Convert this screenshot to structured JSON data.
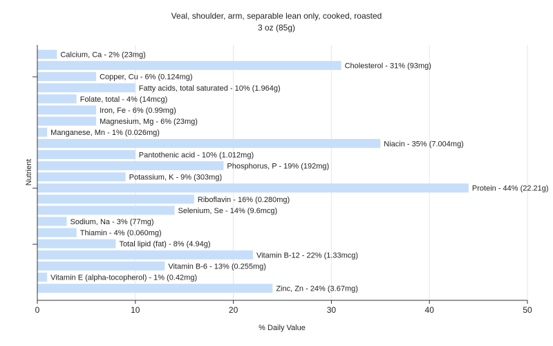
{
  "chart_data": {
    "type": "bar",
    "orientation": "horizontal",
    "title": "Veal, shoulder, arm, separable lean only, cooked, roasted",
    "subtitle": "3 oz (85g)",
    "xlabel": "% Daily Value",
    "ylabel": "Nutrient",
    "xlim": [
      0,
      50
    ],
    "xticks": [
      "0",
      "10",
      "20",
      "30",
      "40",
      "50"
    ],
    "grid": true,
    "bar_color": "#c6defa",
    "categories": [
      "Calcium, Ca",
      "Cholesterol",
      "Copper, Cu",
      "Fatty acids, total saturated",
      "Folate, total",
      "Iron, Fe",
      "Magnesium, Mg",
      "Manganese, Mn",
      "Niacin",
      "Pantothenic acid",
      "Phosphorus, P",
      "Potassium, K",
      "Protein",
      "Riboflavin",
      "Selenium, Se",
      "Sodium, Na",
      "Thiamin",
      "Total lipid (fat)",
      "Vitamin B-12",
      "Vitamin B-6",
      "Vitamin E (alpha-tocopherol)",
      "Zinc, Zn"
    ],
    "values": [
      2,
      31,
      6,
      10,
      4,
      6,
      6,
      1,
      35,
      10,
      19,
      9,
      44,
      16,
      14,
      3,
      4,
      8,
      22,
      13,
      1,
      24
    ],
    "labels": [
      "Calcium, Ca - 2% (23mg)",
      "Cholesterol - 31% (93mg)",
      "Copper, Cu - 6% (0.124mg)",
      "Fatty acids, total saturated - 10% (1.964g)",
      "Folate, total - 4% (14mcg)",
      "Iron, Fe - 6% (0.99mg)",
      "Magnesium, Mg - 6% (23mg)",
      "Manganese, Mn - 1% (0.026mg)",
      "Niacin - 35% (7.004mg)",
      "Pantothenic acid - 10% (1.012mg)",
      "Phosphorus, P - 19% (192mg)",
      "Potassium, K - 9% (303mg)",
      "Protein - 44% (22.21g)",
      "Riboflavin - 16% (0.280mg)",
      "Selenium, Se - 14% (9.6mcg)",
      "Sodium, Na - 3% (77mg)",
      "Thiamin - 4% (0.060mg)",
      "Total lipid (fat) - 8% (4.94g)",
      "Vitamin B-12 - 22% (1.33mcg)",
      "Vitamin B-6 - 13% (0.255mg)",
      "Vitamin E (alpha-tocopherol) - 1% (0.42mg)",
      "Zinc, Zn - 24% (3.67mg)"
    ]
  }
}
